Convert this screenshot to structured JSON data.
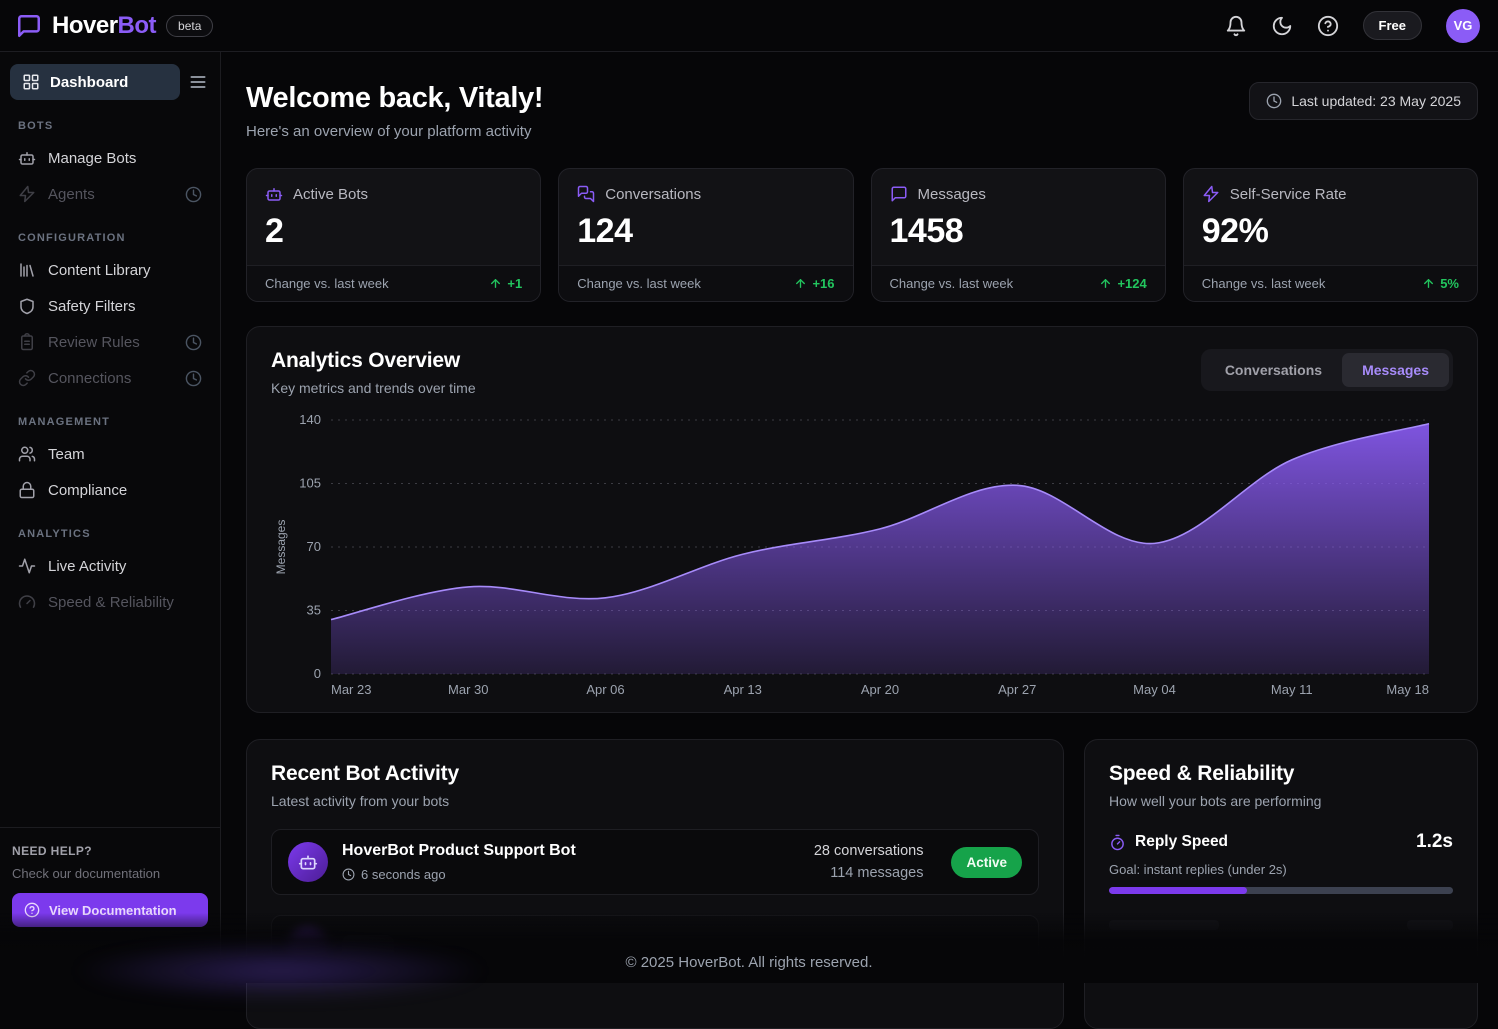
{
  "header": {
    "logo_part1": "Hover",
    "logo_part2": "Bot",
    "beta_badge": "beta",
    "plan_badge": "Free",
    "avatar_initials": "VG"
  },
  "sidebar": {
    "dashboard_label": "Dashboard",
    "sections": [
      {
        "title": "BOTS",
        "items": [
          {
            "label": "Manage Bots",
            "icon": "bot-icon",
            "disabled": false
          },
          {
            "label": "Agents",
            "icon": "zap-icon",
            "disabled": true,
            "coming_soon": true
          }
        ]
      },
      {
        "title": "CONFIGURATION",
        "items": [
          {
            "label": "Content Library",
            "icon": "library-icon",
            "disabled": false
          },
          {
            "label": "Safety Filters",
            "icon": "shield-icon",
            "disabled": false
          },
          {
            "label": "Review Rules",
            "icon": "clipboard-icon",
            "disabled": true,
            "coming_soon": true
          },
          {
            "label": "Connections",
            "icon": "link-icon",
            "disabled": true,
            "coming_soon": true
          }
        ]
      },
      {
        "title": "MANAGEMENT",
        "items": [
          {
            "label": "Team",
            "icon": "users-icon",
            "disabled": false
          },
          {
            "label": "Compliance",
            "icon": "lock-icon",
            "disabled": false
          }
        ]
      },
      {
        "title": "ANALYTICS",
        "items": [
          {
            "label": "Live Activity",
            "icon": "activity-icon",
            "disabled": false
          },
          {
            "label": "Speed & Reliability",
            "icon": "gauge-icon",
            "disabled": true
          }
        ]
      }
    ],
    "help": {
      "title": "NEED HELP?",
      "subtitle": "Check our documentation",
      "button_label": "View Documentation"
    }
  },
  "main": {
    "welcome_title": "Welcome back, Vitaly!",
    "welcome_subtitle": "Here's an overview of your platform activity",
    "last_updated": "Last updated: 23 May 2025"
  },
  "stats": [
    {
      "label": "Active Bots",
      "value": "2",
      "change_label": "Change vs. last week",
      "change_value": "+1"
    },
    {
      "label": "Conversations",
      "value": "124",
      "change_label": "Change vs. last week",
      "change_value": "+16"
    },
    {
      "label": "Messages",
      "value": "1458",
      "change_label": "Change vs. last week",
      "change_value": "+124"
    },
    {
      "label": "Self-Service Rate",
      "value": "92%",
      "change_label": "Change vs. last week",
      "change_value": "5%"
    }
  ],
  "analytics": {
    "title": "Analytics Overview",
    "subtitle": "Key metrics and trends over time",
    "tabs": [
      "Conversations",
      "Messages"
    ],
    "active_tab": "Messages"
  },
  "chart_data": {
    "type": "area",
    "title": "Analytics Overview — Messages",
    "x": [
      "Mar 23",
      "Mar 30",
      "Apr 06",
      "Apr 13",
      "Apr 20",
      "Apr 27",
      "May 04",
      "May 11",
      "May 18"
    ],
    "series": [
      {
        "name": "Messages",
        "values": [
          30,
          48,
          42,
          66,
          80,
          104,
          72,
          118,
          138
        ]
      }
    ],
    "ylabel": "Messages",
    "xlabel": "",
    "ylim": [
      0,
      140
    ],
    "yticks": [
      0,
      35,
      70,
      105,
      140
    ],
    "grid": "horizontal-dotted",
    "legend": "none",
    "area_color": "#8b5cf6",
    "line_color": "#a78bfa"
  },
  "recent_activity": {
    "title": "Recent Bot Activity",
    "subtitle": "Latest activity from your bots",
    "items": [
      {
        "name": "HoverBot Product Support Bot",
        "time": "6 seconds ago",
        "conversations": "28 conversations",
        "messages": "114 messages",
        "status": "Active"
      }
    ]
  },
  "speed_card": {
    "title": "Speed & Reliability",
    "subtitle": "How well your bots are performing",
    "metric": {
      "label": "Reply Speed",
      "value": "1.2s",
      "goal": "Goal: instant replies (under 2s)",
      "progress_pct": 40
    }
  },
  "footer": {
    "copyright": "© 2025 HoverBot. All rights reserved."
  },
  "colors": {
    "accent": "#8b5cf6",
    "accent_deep": "#7c3aed",
    "positive": "#22c55e",
    "active_badge": "#16a34a"
  }
}
